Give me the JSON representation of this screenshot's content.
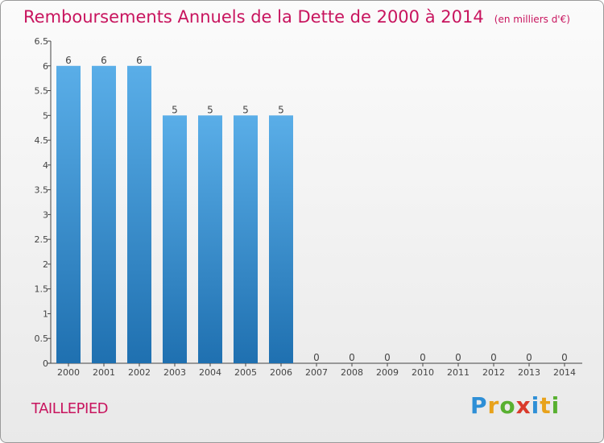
{
  "header": {
    "title": "Remboursements Annuels de la Dette de 2000 à 2014",
    "subtitle": "(en milliers d'€)"
  },
  "footer": {
    "commune": "TAILLEPIED",
    "logo": {
      "text": "Proxiti",
      "letters": [
        {
          "char": "P",
          "color": "#2e8fd6"
        },
        {
          "char": "r",
          "color": "#e8a21b"
        },
        {
          "char": "o",
          "color": "#58b030"
        },
        {
          "char": "x",
          "color": "#d93a2b"
        },
        {
          "char": "i",
          "color": "#2e8fd6"
        },
        {
          "char": "t",
          "color": "#e8a21b"
        },
        {
          "char": "i",
          "color": "#58b030"
        }
      ]
    }
  },
  "chart_data": {
    "type": "bar",
    "categories": [
      "2000",
      "2001",
      "2002",
      "2003",
      "2004",
      "2005",
      "2006",
      "2007",
      "2008",
      "2009",
      "2010",
      "2011",
      "2012",
      "2013",
      "2014"
    ],
    "values": [
      6,
      6,
      6,
      5,
      5,
      5,
      5,
      0,
      0,
      0,
      0,
      0,
      0,
      0,
      0
    ],
    "data_labels": [
      "6",
      "6",
      "6",
      "5",
      "5",
      "5",
      "5",
      "0",
      "0",
      "0",
      "0",
      "0",
      "0",
      "0",
      "0"
    ],
    "y_ticks": [
      0,
      0.5,
      1,
      1.5,
      2,
      2.5,
      3,
      3.5,
      4,
      4.5,
      5,
      5.5,
      6,
      6.5
    ],
    "y_tick_labels": [
      "0",
      "0.5",
      "1",
      "1.5",
      "2",
      "2.5",
      "3",
      "3.5",
      "4",
      "4.5",
      "5",
      "5.5",
      "6",
      "6.5"
    ],
    "ylim": [
      0,
      6.5
    ],
    "grid": false,
    "colors": {
      "bar_top": "#5aaee8",
      "bar_bottom": "#1f70b0",
      "axis": "#444444",
      "text": "#444444"
    }
  }
}
